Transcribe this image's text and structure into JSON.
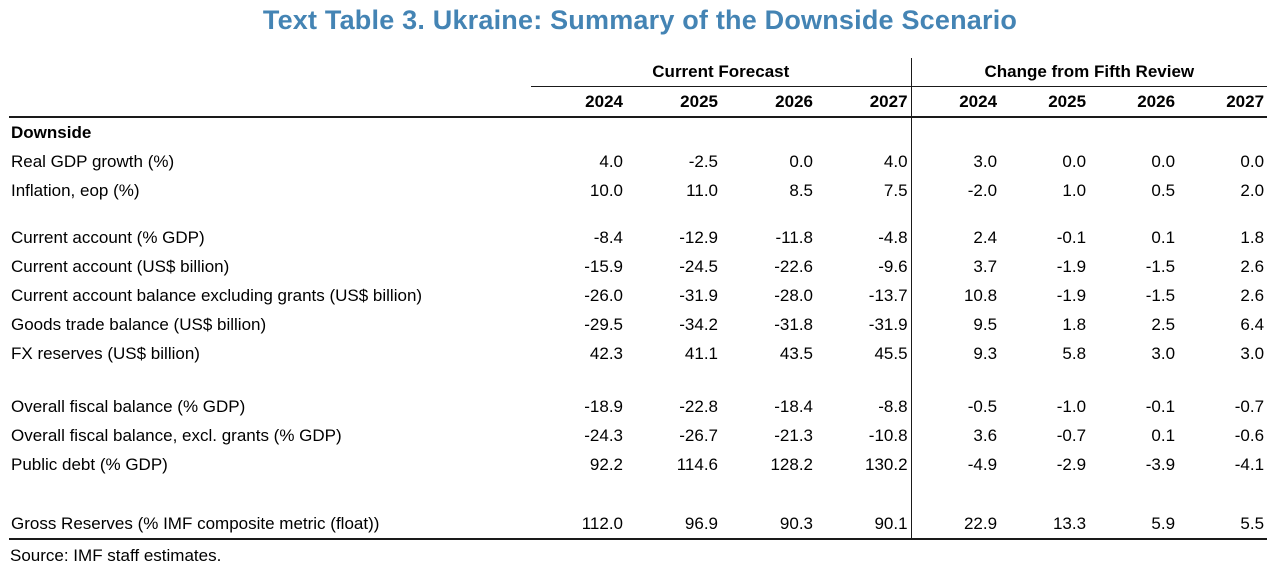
{
  "title": "Text Table 3. Ukraine: Summary of the Downside Scenario",
  "source": "Source: IMF staff estimates.",
  "colors": {
    "title_blue": "#4484B4",
    "rule": "#1A1A1A"
  },
  "table": {
    "group_headers": [
      {
        "label": "Current Forecast"
      },
      {
        "label": "Change from Fifth Review"
      }
    ],
    "years": [
      "2024",
      "2025",
      "2026",
      "2027",
      "2024",
      "2025",
      "2026",
      "2027"
    ],
    "rows": [
      {
        "type": "section",
        "label": "Downside"
      },
      {
        "type": "data",
        "label": "Real GDP growth (%)",
        "values": [
          "4.0",
          "-2.5",
          "0.0",
          "4.0",
          "3.0",
          "0.0",
          "0.0",
          "0.0"
        ]
      },
      {
        "type": "data",
        "label": "Inflation, eop (%)",
        "values": [
          "10.0",
          "11.0",
          "8.5",
          "7.5",
          "-2.0",
          "1.0",
          "0.5",
          "2.0"
        ]
      },
      {
        "type": "spacer",
        "size": "small"
      },
      {
        "type": "data",
        "label": "Current account (% GDP)",
        "values": [
          "-8.4",
          "-12.9",
          "-11.8",
          "-4.8",
          "2.4",
          "-0.1",
          "0.1",
          "1.8"
        ]
      },
      {
        "type": "data",
        "label": "Current account (US$ billion)",
        "values": [
          "-15.9",
          "-24.5",
          "-22.6",
          "-9.6",
          "3.7",
          "-1.9",
          "-1.5",
          "2.6"
        ]
      },
      {
        "type": "data",
        "label": "Current account balance excluding grants (US$ billion)",
        "values": [
          "-26.0",
          "-31.9",
          "-28.0",
          "-13.7",
          "10.8",
          "-1.9",
          "-1.5",
          "2.6"
        ]
      },
      {
        "type": "data",
        "label": "Goods trade balance (US$ billion)",
        "values": [
          "-29.5",
          "-34.2",
          "-31.8",
          "-31.9",
          "9.5",
          "1.8",
          "2.5",
          "6.4"
        ]
      },
      {
        "type": "data",
        "label": "FX reserves (US$ billion)",
        "values": [
          "42.3",
          "41.1",
          "43.5",
          "45.5",
          "9.3",
          "5.8",
          "3.0",
          "3.0"
        ]
      },
      {
        "type": "spacer",
        "size": "medium"
      },
      {
        "type": "data",
        "label": "Overall fiscal balance (% GDP)",
        "values": [
          "-18.9",
          "-22.8",
          "-18.4",
          "-8.8",
          "-0.5",
          "-1.0",
          "-0.1",
          "-0.7"
        ]
      },
      {
        "type": "data",
        "label": "Overall fiscal balance, excl. grants (% GDP)",
        "values": [
          "-24.3",
          "-26.7",
          "-21.3",
          "-10.8",
          "3.6",
          "-0.7",
          "0.1",
          "-0.6"
        ]
      },
      {
        "type": "data",
        "label": "Public debt (% GDP)",
        "values": [
          "92.2",
          "114.6",
          "128.2",
          "130.2",
          "-4.9",
          "-2.9",
          "-3.9",
          "-4.1"
        ]
      },
      {
        "type": "spacer",
        "size": "large"
      },
      {
        "type": "data",
        "label": "Gross Reserves (% IMF composite metric (float))",
        "values": [
          "112.0",
          "96.9",
          "90.3",
          "90.1",
          "22.9",
          "13.3",
          "5.9",
          "5.5"
        ]
      }
    ]
  }
}
